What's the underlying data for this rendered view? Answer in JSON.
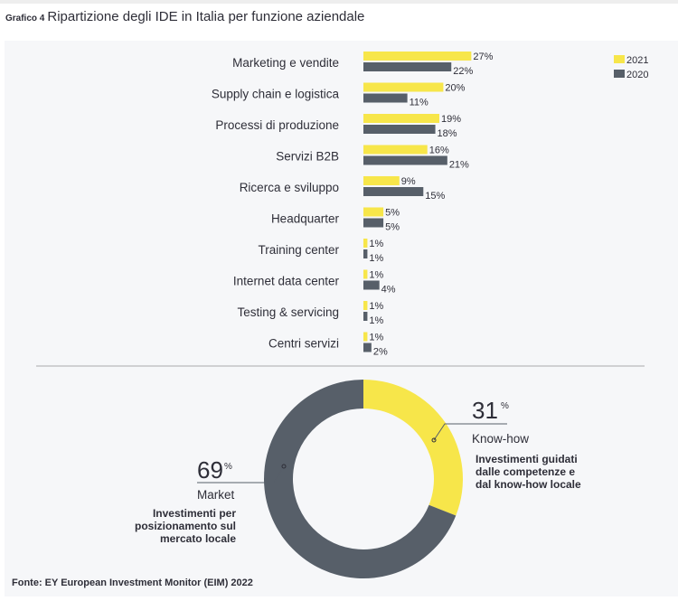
{
  "header": {
    "label": "Grafico 4",
    "title": "Ripartizione degli IDE in Italia per funzione aziendale"
  },
  "chart_data": [
    {
      "type": "bar",
      "orientation": "horizontal",
      "categories": [
        "Marketing e vendite",
        "Supply chain e logistica",
        "Processi di produzione",
        "Servizi B2B",
        "Ricerca e sviluppo",
        "Headquarter",
        "Training center",
        "Internet data center",
        "Testing & servicing",
        "Centri servizi"
      ],
      "series": [
        {
          "name": "2021",
          "color": "#f7e64a",
          "values": [
            27,
            20,
            19,
            16,
            9,
            5,
            1,
            1,
            1,
            1
          ]
        },
        {
          "name": "2020",
          "color": "#575f69",
          "values": [
            22,
            11,
            18,
            21,
            15,
            5,
            1,
            4,
            1,
            2
          ]
        }
      ],
      "unit": "%",
      "legend": "top-right"
    },
    {
      "type": "pie",
      "donut": true,
      "slices": [
        {
          "label": "Know-how",
          "value": 31,
          "color": "#f7e64a",
          "description": [
            "Investimenti guidati",
            "dalle competenze e",
            "dal know-how locale"
          ]
        },
        {
          "label": "Market",
          "value": 69,
          "color": "#575f69",
          "description": [
            "Investimenti per",
            "posizionamento sul",
            "mercato locale"
          ]
        }
      ],
      "unit": "%"
    }
  ],
  "source": "Fonte: EY European Investment Monitor (EIM) 2022"
}
